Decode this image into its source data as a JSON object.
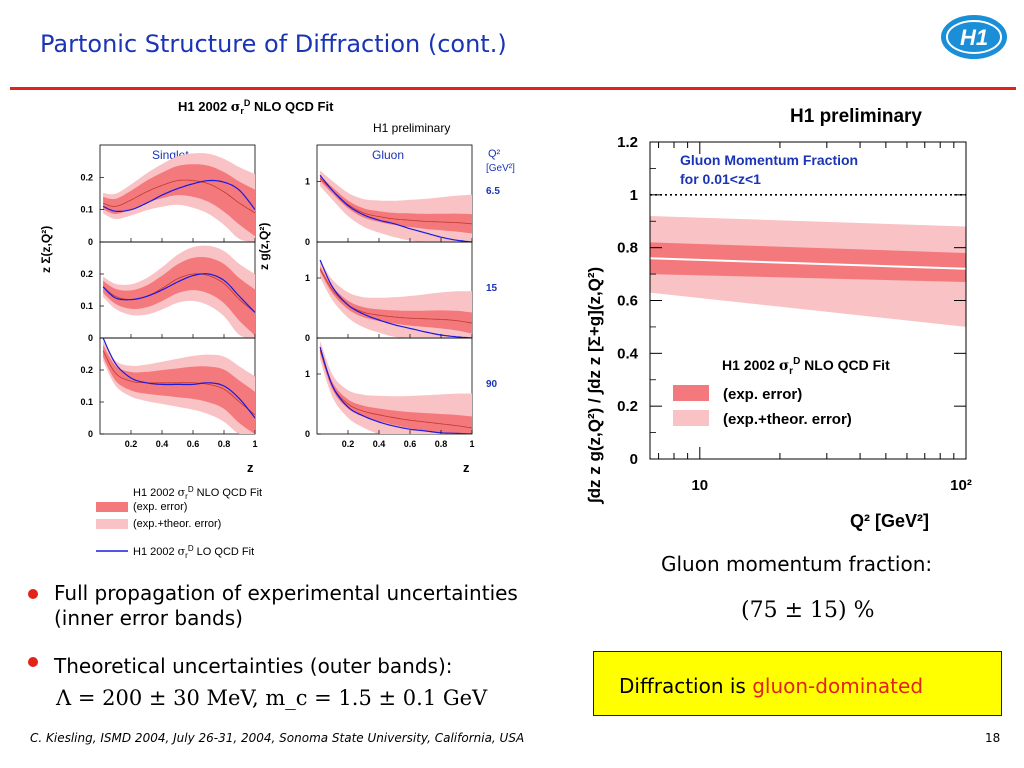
{
  "slide": {
    "title": "Partonic Structure of Diffraction (cont.)",
    "logo_text": "H1",
    "bullets": [
      {
        "line1": "Full propagation of experimental uncertainties",
        "line2": "(inner error bands)"
      },
      {
        "line1": "Theoretical uncertainties (outer bands):",
        "formula": "Λ = 200 ± 30 MeV, m_c = 1.5 ± 0.1 GeV"
      }
    ],
    "gluon_fraction_label": "Gluon momentum fraction:",
    "gluon_fraction_value": "(75 ± 15) %",
    "conclusion_prefix": "Diffraction is ",
    "conclusion_highlight": "gluon-dominated",
    "footer": "C. Kiesling, ISMD 2004, July 26-31, 2004, Sonoma State University, California, USA",
    "page_number": "18",
    "colors": {
      "title": "#1a34b5",
      "accent_red": "#e2231a",
      "highlight_box": "#ffff00",
      "inner_band": "#f4797c",
      "outer_band": "#f9c2c4",
      "lo_curve": "#1a1ae0"
    }
  },
  "left_figure": {
    "main_title": "H1 2002 σrᴰ NLO QCD Fit",
    "preliminary": "H1 preliminary",
    "singlet_title": "Singlet",
    "gluon_title": "Gluon",
    "singlet_ylabel": "z Σ(z,Q²)",
    "gluon_ylabel": "z g(z,Q²)",
    "q2_label": "Q²",
    "q2_unit": "[GeV²]",
    "q2_values": [
      "6.5",
      "15",
      "90"
    ],
    "singlet_yticks": [
      "0.2",
      "0.1",
      "0"
    ],
    "gluon_yticks": [
      "1",
      "0"
    ],
    "xticks": [
      "0.2",
      "0.4",
      "0.6",
      "0.8",
      "1"
    ],
    "xlabel": "z",
    "legend": {
      "nlo": "H1 2002 σrᴰ NLO QCD Fit",
      "exp": "(exp. error)",
      "theor": "(exp.+theor. error)",
      "lo": "H1 2002 σrᴰ LO QCD Fit"
    }
  },
  "chart_data": [
    {
      "type": "line",
      "title": "Singlet",
      "xlabel": "z",
      "ylabel": "z Σ(z,Q²)",
      "xlim": [
        0,
        1
      ],
      "ylim": [
        0,
        0.3
      ],
      "x": [
        0.02,
        0.1,
        0.2,
        0.3,
        0.4,
        0.5,
        0.6,
        0.7,
        0.8,
        0.9,
        1.0
      ],
      "panels": [
        {
          "q2": "6.5",
          "series": [
            {
              "name": "NLO",
              "values": [
                0.12,
                0.11,
                0.13,
                0.155,
                0.175,
                0.19,
                0.19,
                0.18,
                0.155,
                0.12,
                0.09
              ]
            },
            {
              "name": "LO",
              "values": [
                0.11,
                0.095,
                0.1,
                0.12,
                0.145,
                0.165,
                0.18,
                0.19,
                0.185,
                0.16,
                0.1
              ]
            }
          ]
        },
        {
          "q2": "15",
          "series": [
            {
              "name": "NLO",
              "values": [
                0.16,
                0.13,
                0.12,
                0.13,
                0.155,
                0.185,
                0.2,
                0.195,
                0.17,
                0.12,
                0.08
              ]
            },
            {
              "name": "LO",
              "values": [
                0.16,
                0.125,
                0.12,
                0.13,
                0.15,
                0.175,
                0.195,
                0.2,
                0.18,
                0.13,
                0.08
              ]
            }
          ]
        },
        {
          "q2": "90",
          "series": [
            {
              "name": "NLO",
              "values": [
                0.26,
                0.19,
                0.165,
                0.16,
                0.16,
                0.16,
                0.16,
                0.155,
                0.14,
                0.1,
                0.06
              ]
            },
            {
              "name": "LO",
              "values": [
                0.3,
                0.22,
                0.175,
                0.16,
                0.155,
                0.155,
                0.155,
                0.16,
                0.15,
                0.11,
                0.05
              ]
            }
          ]
        }
      ]
    },
    {
      "type": "line",
      "title": "Gluon",
      "xlabel": "z",
      "ylabel": "z g(z,Q²)",
      "xlim": [
        0,
        1
      ],
      "ylim": [
        0,
        1.6
      ],
      "x": [
        0.02,
        0.1,
        0.2,
        0.3,
        0.4,
        0.5,
        0.6,
        0.7,
        0.8,
        0.9,
        1.0
      ],
      "panels": [
        {
          "q2": "6.5",
          "series": [
            {
              "name": "NLO",
              "values": [
                1.05,
                0.85,
                0.62,
                0.48,
                0.42,
                0.38,
                0.36,
                0.34,
                0.33,
                0.32,
                0.3
              ]
            },
            {
              "name": "LO",
              "values": [
                1.1,
                0.85,
                0.6,
                0.45,
                0.36,
                0.3,
                0.22,
                0.15,
                0.08,
                0.03,
                0.0
              ]
            }
          ]
        },
        {
          "q2": "15",
          "series": [
            {
              "name": "NLO",
              "values": [
                1.15,
                0.8,
                0.55,
                0.43,
                0.38,
                0.35,
                0.33,
                0.32,
                0.31,
                0.29,
                0.25
              ]
            },
            {
              "name": "LO",
              "values": [
                1.3,
                0.85,
                0.55,
                0.4,
                0.3,
                0.22,
                0.16,
                0.1,
                0.05,
                0.02,
                0.0
              ]
            }
          ]
        },
        {
          "q2": "90",
          "series": [
            {
              "name": "NLO",
              "values": [
                1.4,
                0.8,
                0.5,
                0.38,
                0.32,
                0.27,
                0.23,
                0.2,
                0.17,
                0.14,
                0.1
              ]
            },
            {
              "name": "LO",
              "values": [
                1.45,
                0.8,
                0.45,
                0.3,
                0.2,
                0.13,
                0.08,
                0.05,
                0.02,
                0.01,
                0.0
              ]
            }
          ]
        }
      ]
    },
    {
      "type": "area",
      "title": "H1 preliminary",
      "annotation": "Gluon Momentum Fraction for 0.01<z<1",
      "xlabel": "Q² [GeV²]",
      "ylabel": "∫dz z g(z,Q²) / ∫dz z [Σ+g](z,Q²)",
      "xscale": "log",
      "xlim": [
        6.5,
        100
      ],
      "ylim": [
        0,
        1.2
      ],
      "xticks": [
        "10",
        "10²"
      ],
      "yticks": [
        "0",
        "0.2",
        "0.4",
        "0.6",
        "0.8",
        "1",
        "1.2"
      ],
      "reference_line": 1.0,
      "x": [
        6.5,
        100
      ],
      "central": [
        0.76,
        0.72
      ],
      "exp_band": {
        "low": [
          0.7,
          0.67
        ],
        "high": [
          0.82,
          0.78
        ]
      },
      "theor_band": {
        "low": [
          0.63,
          0.5
        ],
        "high": [
          0.92,
          0.88
        ]
      },
      "legend": {
        "title": "H1 2002 σrᴰ NLO QCD Fit",
        "exp": "(exp. error)",
        "theor": "(exp.+theor. error)"
      }
    }
  ]
}
